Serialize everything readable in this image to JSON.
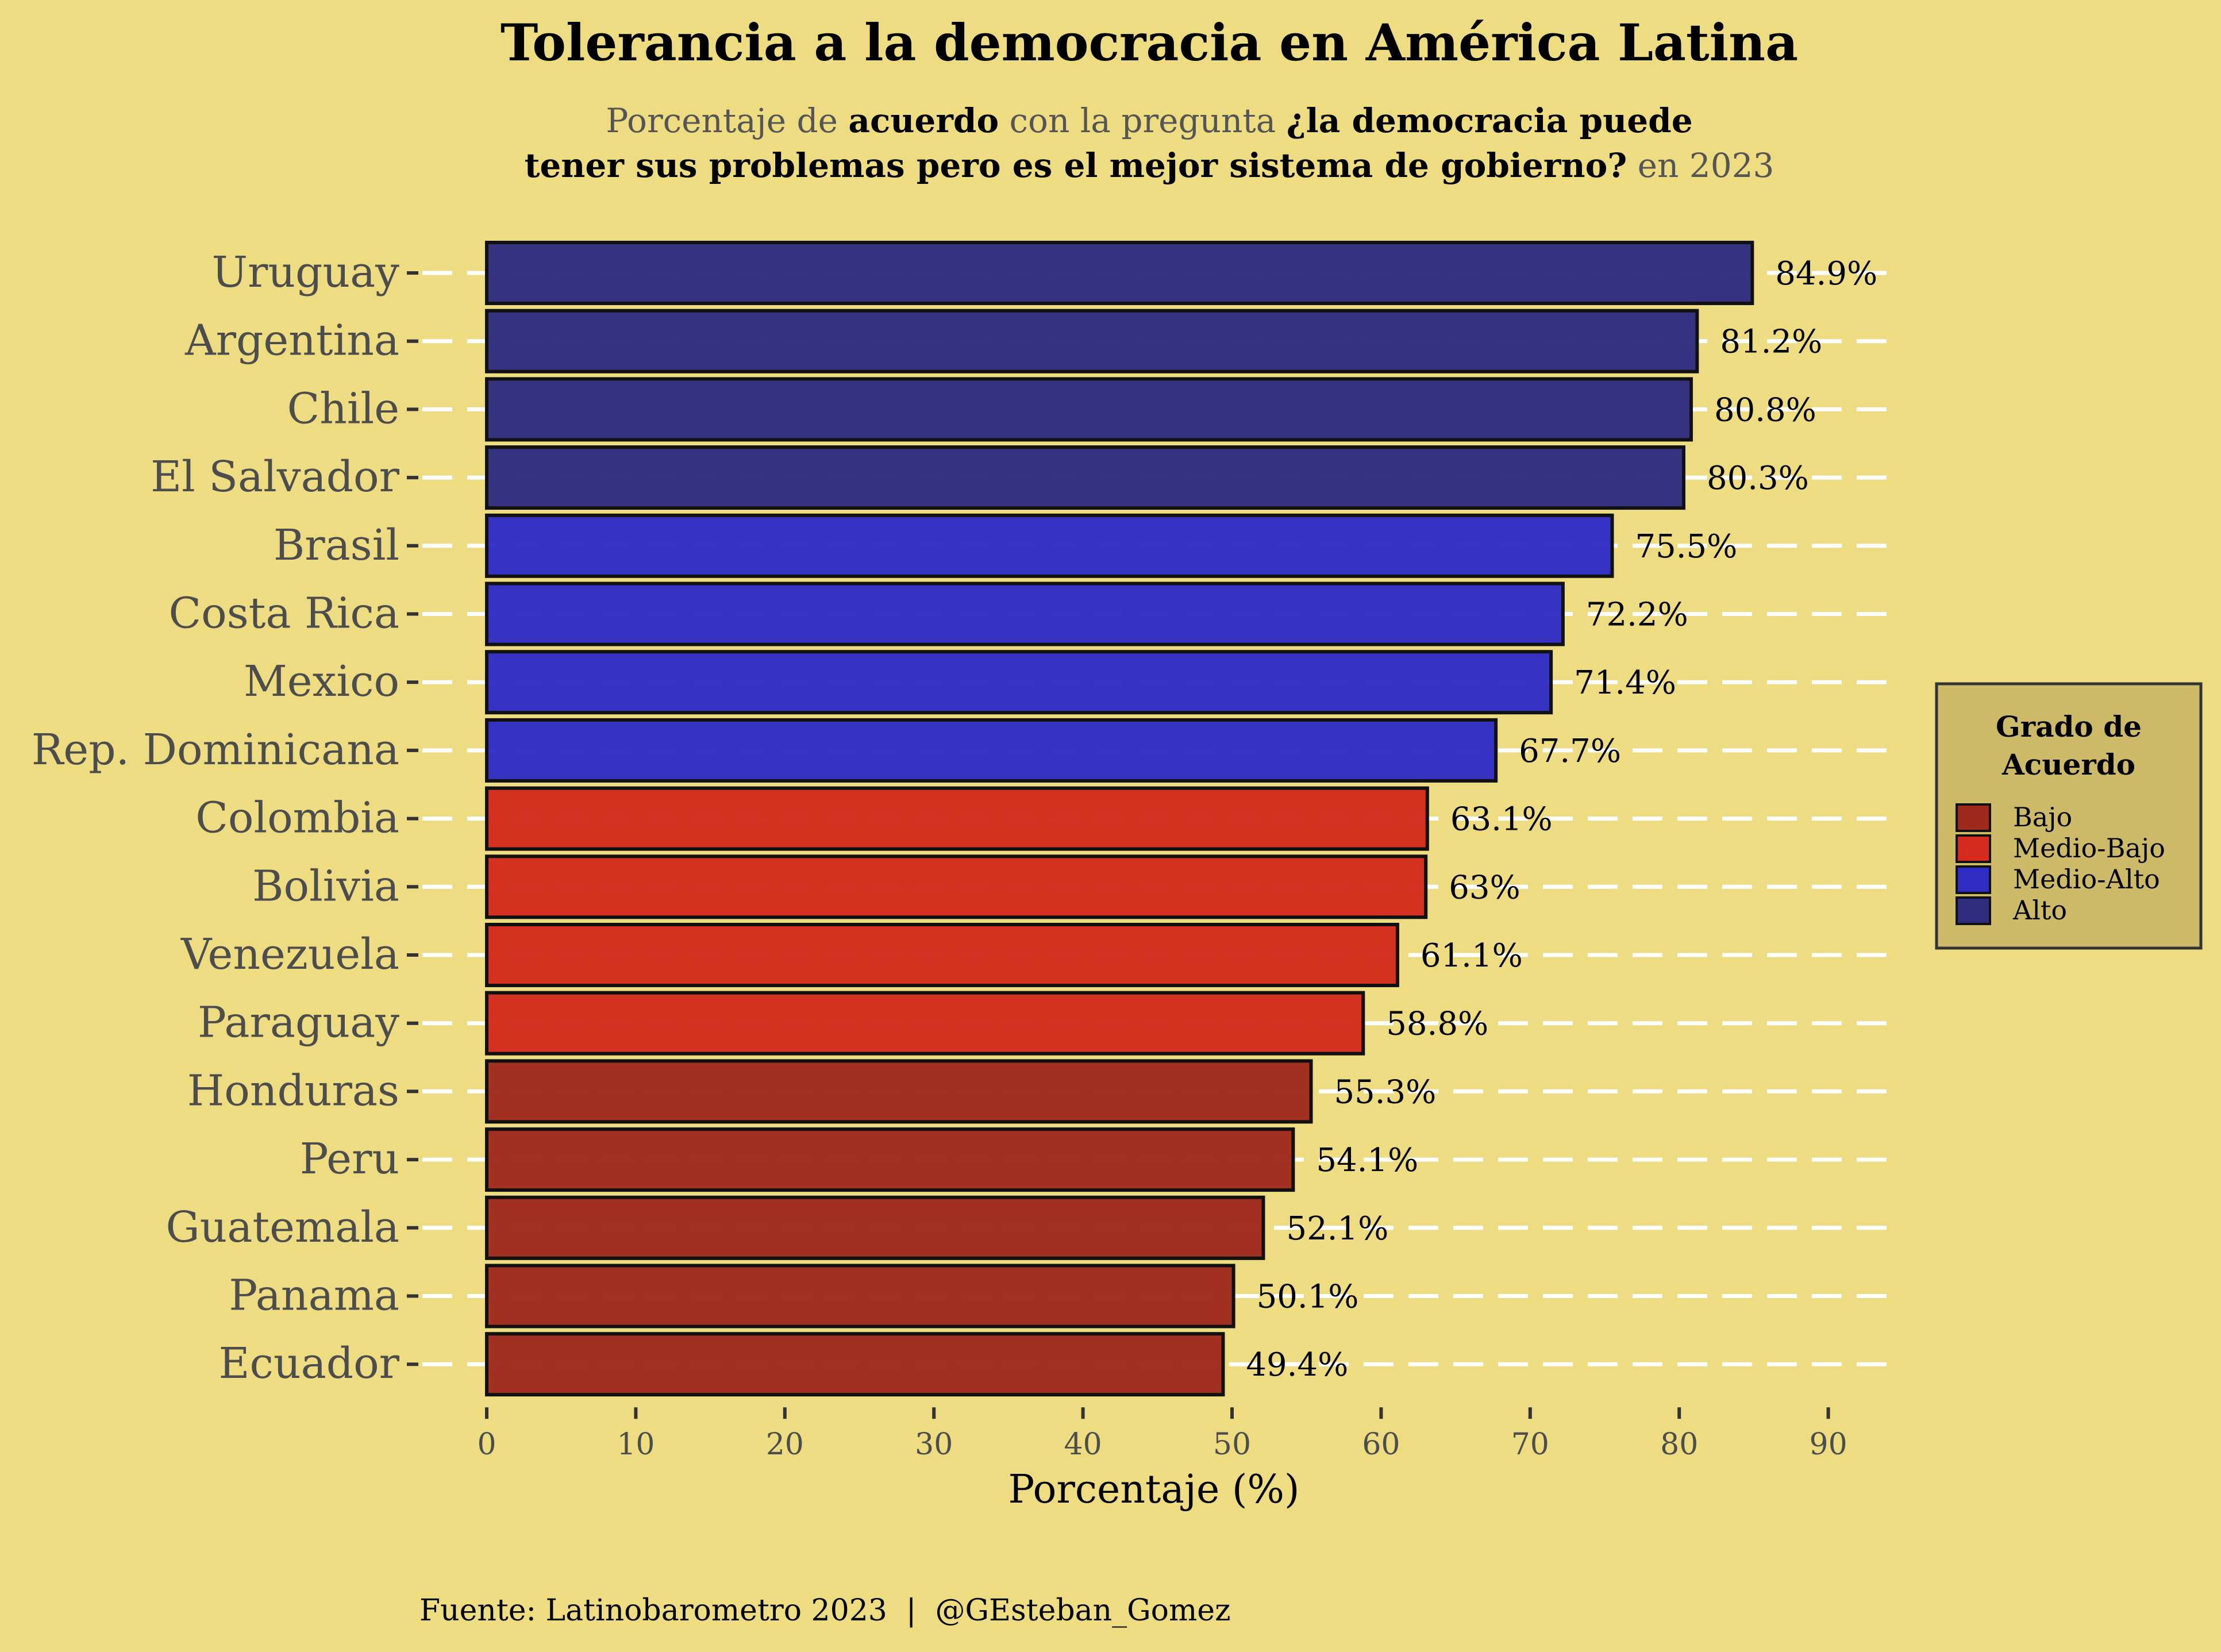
{
  "title": "Tolerancia a la democracia en América Latina",
  "subtitle": {
    "line1": [
      {
        "text": "Porcentaje de ",
        "bold": false
      },
      {
        "text": "acuerdo",
        "bold": true
      },
      {
        "text": " con la pregunta ",
        "bold": false
      },
      {
        "text": "¿la democracia puede",
        "bold": true
      }
    ],
    "line2": [
      {
        "text": "tener sus problemas pero es el mejor sistema de gobierno?",
        "bold": true
      },
      {
        "text": " en 2023",
        "bold": false
      }
    ]
  },
  "caption": "Fuente: Latinobarometro 2023  |  @GEsteban_Gomez",
  "legend": {
    "title_line1": "Grado de",
    "title_line2": "Acuerdo",
    "items": [
      {
        "label": "Bajo",
        "color": "#9E2A1E"
      },
      {
        "label": "Medio-Bajo",
        "color": "#D42B1E"
      },
      {
        "label": "Medio-Alto",
        "color": "#2F2DC4"
      },
      {
        "label": "Alto",
        "color": "#2E2D80"
      }
    ]
  },
  "colors": {
    "background": "#EEDC82",
    "legend_background": "#CDBA68",
    "grid": "#FFFFFF",
    "text_dark": "#000000",
    "text_muted": "#4D4D4D"
  },
  "chart_data": {
    "type": "bar",
    "orientation": "horizontal",
    "xlabel": "Porcentaje (%)",
    "ylabel": "",
    "xlim": [
      0,
      90
    ],
    "xticks": [
      0,
      10,
      20,
      30,
      40,
      50,
      60,
      70,
      80,
      90
    ],
    "grid": "horizontal dashed lines",
    "legend_position": "right",
    "bars": [
      {
        "category": "Uruguay",
        "value": 84.9,
        "label": "84.9%",
        "group": "Alto"
      },
      {
        "category": "Argentina",
        "value": 81.2,
        "label": "81.2%",
        "group": "Alto"
      },
      {
        "category": "Chile",
        "value": 80.8,
        "label": "80.8%",
        "group": "Alto"
      },
      {
        "category": "El Salvador",
        "value": 80.3,
        "label": "80.3%",
        "group": "Alto"
      },
      {
        "category": "Brasil",
        "value": 75.5,
        "label": "75.5%",
        "group": "Medio-Alto"
      },
      {
        "category": "Costa Rica",
        "value": 72.2,
        "label": "72.2%",
        "group": "Medio-Alto"
      },
      {
        "category": "Mexico",
        "value": 71.4,
        "label": "71.4%",
        "group": "Medio-Alto"
      },
      {
        "category": "Rep. Dominicana",
        "value": 67.7,
        "label": "67.7%",
        "group": "Medio-Alto"
      },
      {
        "category": "Colombia",
        "value": 63.1,
        "label": "63.1%",
        "group": "Medio-Bajo"
      },
      {
        "category": "Bolivia",
        "value": 63.0,
        "label": "63%",
        "group": "Medio-Bajo"
      },
      {
        "category": "Venezuela",
        "value": 61.1,
        "label": "61.1%",
        "group": "Medio-Bajo"
      },
      {
        "category": "Paraguay",
        "value": 58.8,
        "label": "58.8%",
        "group": "Medio-Bajo"
      },
      {
        "category": "Honduras",
        "value": 55.3,
        "label": "55.3%",
        "group": "Bajo"
      },
      {
        "category": "Peru",
        "value": 54.1,
        "label": "54.1%",
        "group": "Bajo"
      },
      {
        "category": "Guatemala",
        "value": 52.1,
        "label": "52.1%",
        "group": "Bajo"
      },
      {
        "category": "Panama",
        "value": 50.1,
        "label": "50.1%",
        "group": "Bajo"
      },
      {
        "category": "Ecuador",
        "value": 49.4,
        "label": "49.4%",
        "group": "Bajo"
      }
    ]
  }
}
